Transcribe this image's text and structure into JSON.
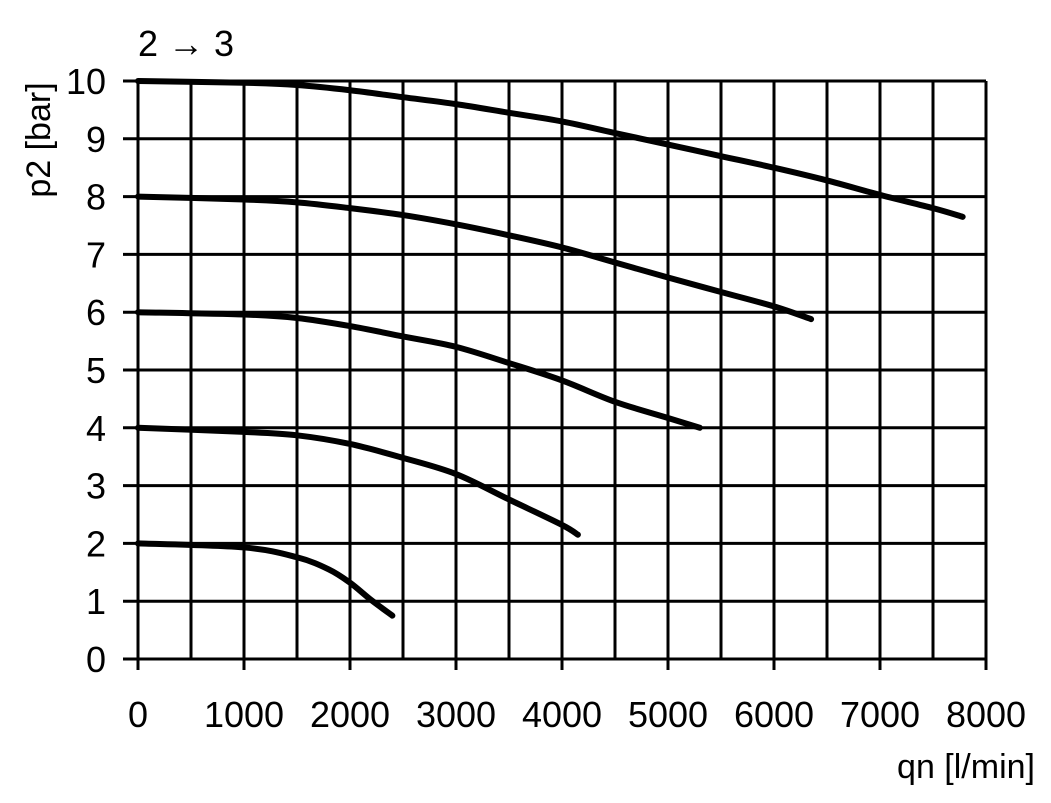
{
  "chart_data": {
    "type": "line",
    "title": "2 → 3",
    "xlabel": "qn [l/min]",
    "ylabel": "p2 [bar]",
    "xlim": [
      0,
      8000
    ],
    "ylim": [
      0,
      10
    ],
    "x_ticks": [
      "0",
      "1000",
      "2000",
      "3000",
      "4000",
      "5000",
      "6000",
      "7000",
      "8000"
    ],
    "y_ticks": [
      "0",
      "1",
      "2",
      "3",
      "4",
      "5",
      "6",
      "7",
      "8",
      "9",
      "10"
    ],
    "grid": true,
    "grid_x_step": 500,
    "grid_y_step": 1,
    "line_color": "#000000",
    "series": [
      {
        "x": [
          0,
          1000,
          1500,
          2000,
          2500,
          3000,
          3500,
          4000,
          4500,
          5000,
          5500,
          6000,
          6500,
          7000,
          7500,
          7780
        ],
        "y": [
          10,
          9.97,
          9.93,
          9.84,
          9.72,
          9.6,
          9.45,
          9.3,
          9.1,
          8.9,
          8.7,
          8.5,
          8.28,
          8.03,
          7.8,
          7.65
        ]
      },
      {
        "x": [
          0,
          1000,
          1500,
          2000,
          2500,
          3000,
          3500,
          4000,
          4500,
          5000,
          5500,
          6000,
          6350
        ],
        "y": [
          8,
          7.95,
          7.9,
          7.8,
          7.68,
          7.52,
          7.33,
          7.12,
          6.86,
          6.6,
          6.35,
          6.1,
          5.88
        ]
      },
      {
        "x": [
          0,
          1000,
          1500,
          2000,
          2500,
          3000,
          3500,
          4000,
          4500,
          5000,
          5300
        ],
        "y": [
          6,
          5.96,
          5.9,
          5.76,
          5.58,
          5.4,
          5.12,
          4.82,
          4.45,
          4.17,
          4.0
        ]
      },
      {
        "x": [
          0,
          1000,
          1500,
          2000,
          2500,
          3000,
          3500,
          4000,
          4150
        ],
        "y": [
          4,
          3.93,
          3.87,
          3.72,
          3.48,
          3.2,
          2.76,
          2.32,
          2.15
        ]
      },
      {
        "x": [
          0,
          1000,
          1500,
          1800,
          2000,
          2200,
          2400
        ],
        "y": [
          2,
          1.93,
          1.76,
          1.55,
          1.32,
          1.02,
          0.75
        ]
      }
    ]
  }
}
